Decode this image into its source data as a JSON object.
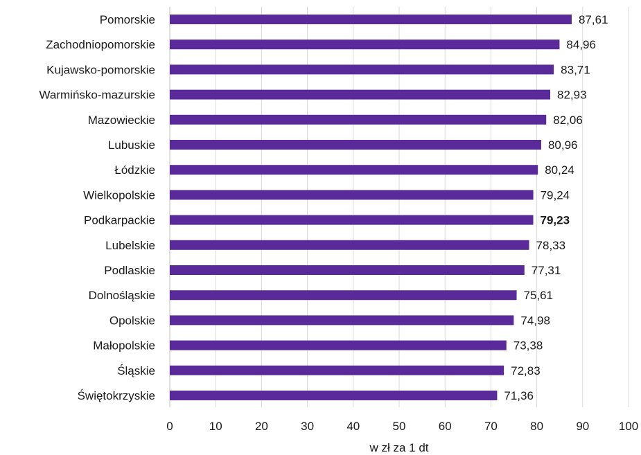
{
  "chart_data": {
    "type": "bar",
    "orientation": "horizontal",
    "title": "",
    "xlabel": "w zł za 1 dt",
    "ylabel": "",
    "xlim": [
      0,
      100
    ],
    "x_ticks": [
      0,
      10,
      20,
      30,
      40,
      50,
      60,
      70,
      80,
      90,
      100
    ],
    "grid": "vertical",
    "bar_color": "#5b2a9a",
    "highlight_category": "Podkarpackie",
    "categories": [
      "Pomorskie",
      "Zachodniopomorskie",
      "Kujawsko-pomorskie",
      "Warmińsko-mazurskie",
      "Mazowieckie",
      "Lubuskie",
      "Łódzkie",
      "Wielkopolskie",
      "Podkarpackie",
      "Lubelskie",
      "Podlaskie",
      "Dolnośląskie",
      "Opolskie",
      "Małopolskie",
      "Śląskie",
      "Świętokrzyskie"
    ],
    "values": [
      87.61,
      84.96,
      83.71,
      82.93,
      82.06,
      80.96,
      80.24,
      79.24,
      79.23,
      78.33,
      77.31,
      75.61,
      74.98,
      73.38,
      72.83,
      71.36
    ],
    "value_labels": [
      "87,61",
      "84,96",
      "83,71",
      "82,93",
      "82,06",
      "80,96",
      "80,24",
      "79,24",
      "79,23",
      "78,33",
      "77,31",
      "75,61",
      "74,98",
      "73,38",
      "72,83",
      "71,36"
    ]
  }
}
